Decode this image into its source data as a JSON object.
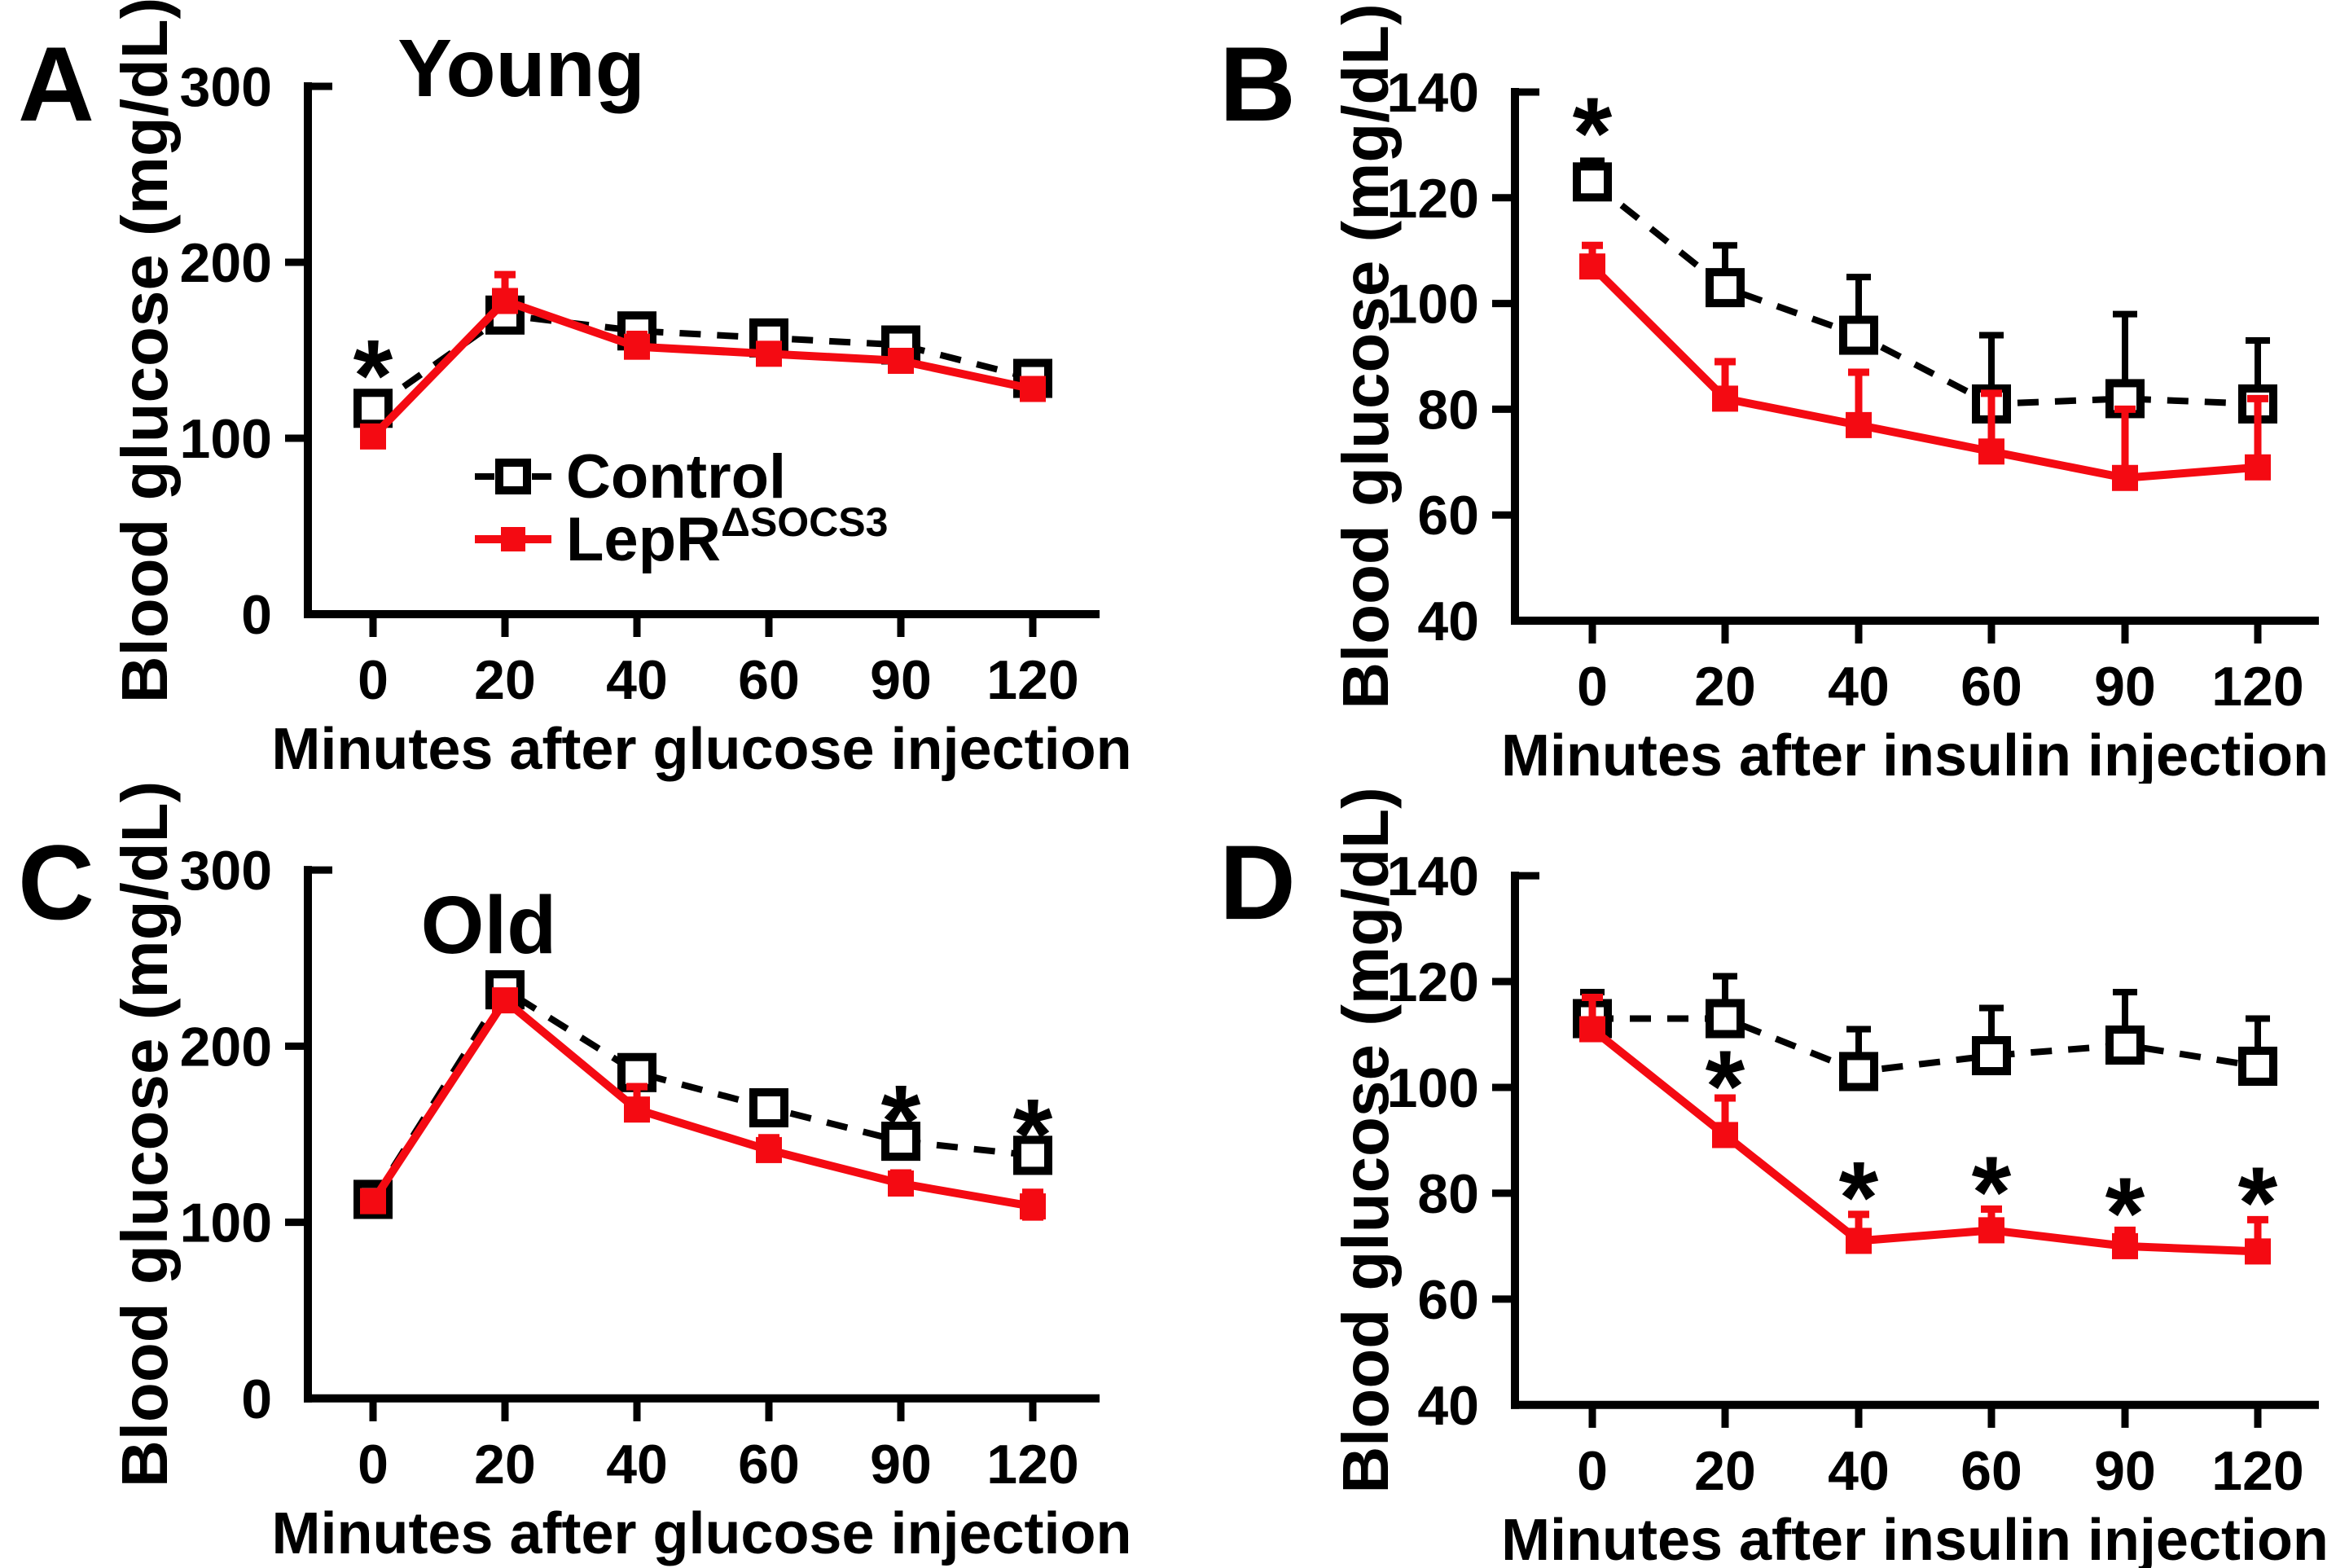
{
  "background": "#FFFFFF",
  "colors": {
    "control": "#000000",
    "lepr": "#F40A12",
    "axis": "#000000"
  },
  "legend": {
    "items": [
      {
        "label": "Control",
        "style": "control"
      },
      {
        "label": "LepR",
        "label_sup": "ΔSOCS3",
        "style": "lepr"
      }
    ]
  },
  "chart_data": {
    "type": "line",
    "grid": false,
    "legend_position": "inside panel A, lower middle",
    "panels": [
      {
        "letter": "A",
        "title": "Young",
        "side": "left",
        "ylabel": "Blood glucose (mg/dL)",
        "xlabel": "Minutes after glucose injection",
        "ylim": [
          0,
          300
        ],
        "yticks": [
          0,
          100,
          200,
          300
        ],
        "x_labels": [
          "0",
          "20",
          "40",
          "60",
          "90",
          "120"
        ],
        "show_legend": true,
        "series": [
          {
            "name": "Control",
            "style": "control",
            "values": [
              117,
              170,
              161,
              157,
              153,
              134
            ],
            "err_up": [
              0,
              0,
              5,
              0,
              0,
              0
            ],
            "err_down": [
              0,
              0,
              0,
              0,
              0,
              0
            ]
          },
          {
            "name": "LepRΔSOCS3",
            "style": "lepr",
            "values": [
              101,
              178,
              152,
              148,
              144,
              128
            ],
            "err_up": [
              0,
              15,
              7,
              0,
              0,
              0
            ],
            "err_down": [
              0,
              0,
              0,
              0,
              0,
              0
            ]
          }
        ],
        "sig": [
          {
            "xi": 0,
            "v": 141
          }
        ]
      },
      {
        "letter": "B",
        "title": "",
        "side": "right",
        "ylabel": "Blood glucose (mg/dL)",
        "xlabel": "Minutes after insulin injection",
        "ylim": [
          40,
          140
        ],
        "yticks": [
          40,
          60,
          80,
          100,
          120,
          140
        ],
        "x_labels": [
          "0",
          "20",
          "40",
          "60",
          "90",
          "120"
        ],
        "show_legend": false,
        "series": [
          {
            "name": "Control",
            "style": "control",
            "values": [
              123,
              103,
              94,
              81,
              82,
              81
            ],
            "err_up": [
              4,
              8,
              11,
              13,
              16,
              12
            ],
            "err_down": [
              0,
              0,
              0,
              0,
              0,
              0
            ]
          },
          {
            "name": "LepRΔSOCS3",
            "style": "lepr",
            "values": [
              107,
              82,
              77,
              72,
              67,
              69
            ],
            "err_up": [
              4,
              7,
              10,
              11,
              13,
              13
            ],
            "err_down": [
              0,
              0,
              0,
              0,
              0,
              0
            ]
          }
        ],
        "sig": [
          {
            "xi": 0,
            "v": 134
          }
        ]
      },
      {
        "letter": "C",
        "title": "Old",
        "side": "left",
        "ylabel": "Blood glucose (mg/dL)",
        "xlabel": "Minutes after glucose injection",
        "ylim": [
          0,
          300
        ],
        "yticks": [
          0,
          100,
          200,
          300
        ],
        "x_labels": [
          "0",
          "20",
          "40",
          "60",
          "90",
          "120"
        ],
        "show_legend": false,
        "series": [
          {
            "name": "Control",
            "style": "control",
            "values": [
              113,
              232,
              185,
              165,
              146,
              138
            ],
            "err_up": [
              0,
              7,
              8,
              6,
              5,
              5
            ],
            "err_down": [
              0,
              0,
              0,
              0,
              0,
              0
            ]
          },
          {
            "name": "LepRΔSOCS3",
            "style": "lepr",
            "values": [
              112,
              226,
              164,
              141,
              122,
              109
            ],
            "err_up": [
              0,
              0,
              13,
              7,
              6,
              8
            ],
            "err_down": [
              0,
              0,
              0,
              0,
              0,
              6
            ]
          }
        ],
        "sig": [
          {
            "xi": 4,
            "v": 163
          },
          {
            "xi": 5,
            "v": 155
          }
        ]
      },
      {
        "letter": "D",
        "title": "",
        "side": "right",
        "ylabel": "Blood glucose (mg/dL)",
        "xlabel": "Minutes after insulin injection",
        "ylim": [
          40,
          140
        ],
        "yticks": [
          40,
          60,
          80,
          100,
          120,
          140
        ],
        "x_labels": [
          "0",
          "20",
          "40",
          "60",
          "90",
          "120"
        ],
        "show_legend": false,
        "series": [
          {
            "name": "Control",
            "style": "control",
            "values": [
              113,
              113,
              103,
              106,
              108,
              104
            ],
            "err_up": [
              5,
              8,
              8,
              9,
              10,
              9
            ],
            "err_down": [
              0,
              0,
              0,
              0,
              0,
              0
            ]
          },
          {
            "name": "LepRΔSOCS3",
            "style": "lepr",
            "values": [
              111,
              91,
              71,
              73,
              70,
              69
            ],
            "err_up": [
              6,
              7,
              5,
              4,
              3,
              6
            ],
            "err_down": [
              0,
              0,
              0,
              0,
              0,
              0
            ]
          }
        ],
        "sig": [
          {
            "xi": 1,
            "v": 102
          },
          {
            "xi": 2,
            "v": 81
          },
          {
            "xi": 3,
            "v": 82
          },
          {
            "xi": 4,
            "v": 78
          },
          {
            "xi": 5,
            "v": 80
          }
        ]
      }
    ]
  }
}
